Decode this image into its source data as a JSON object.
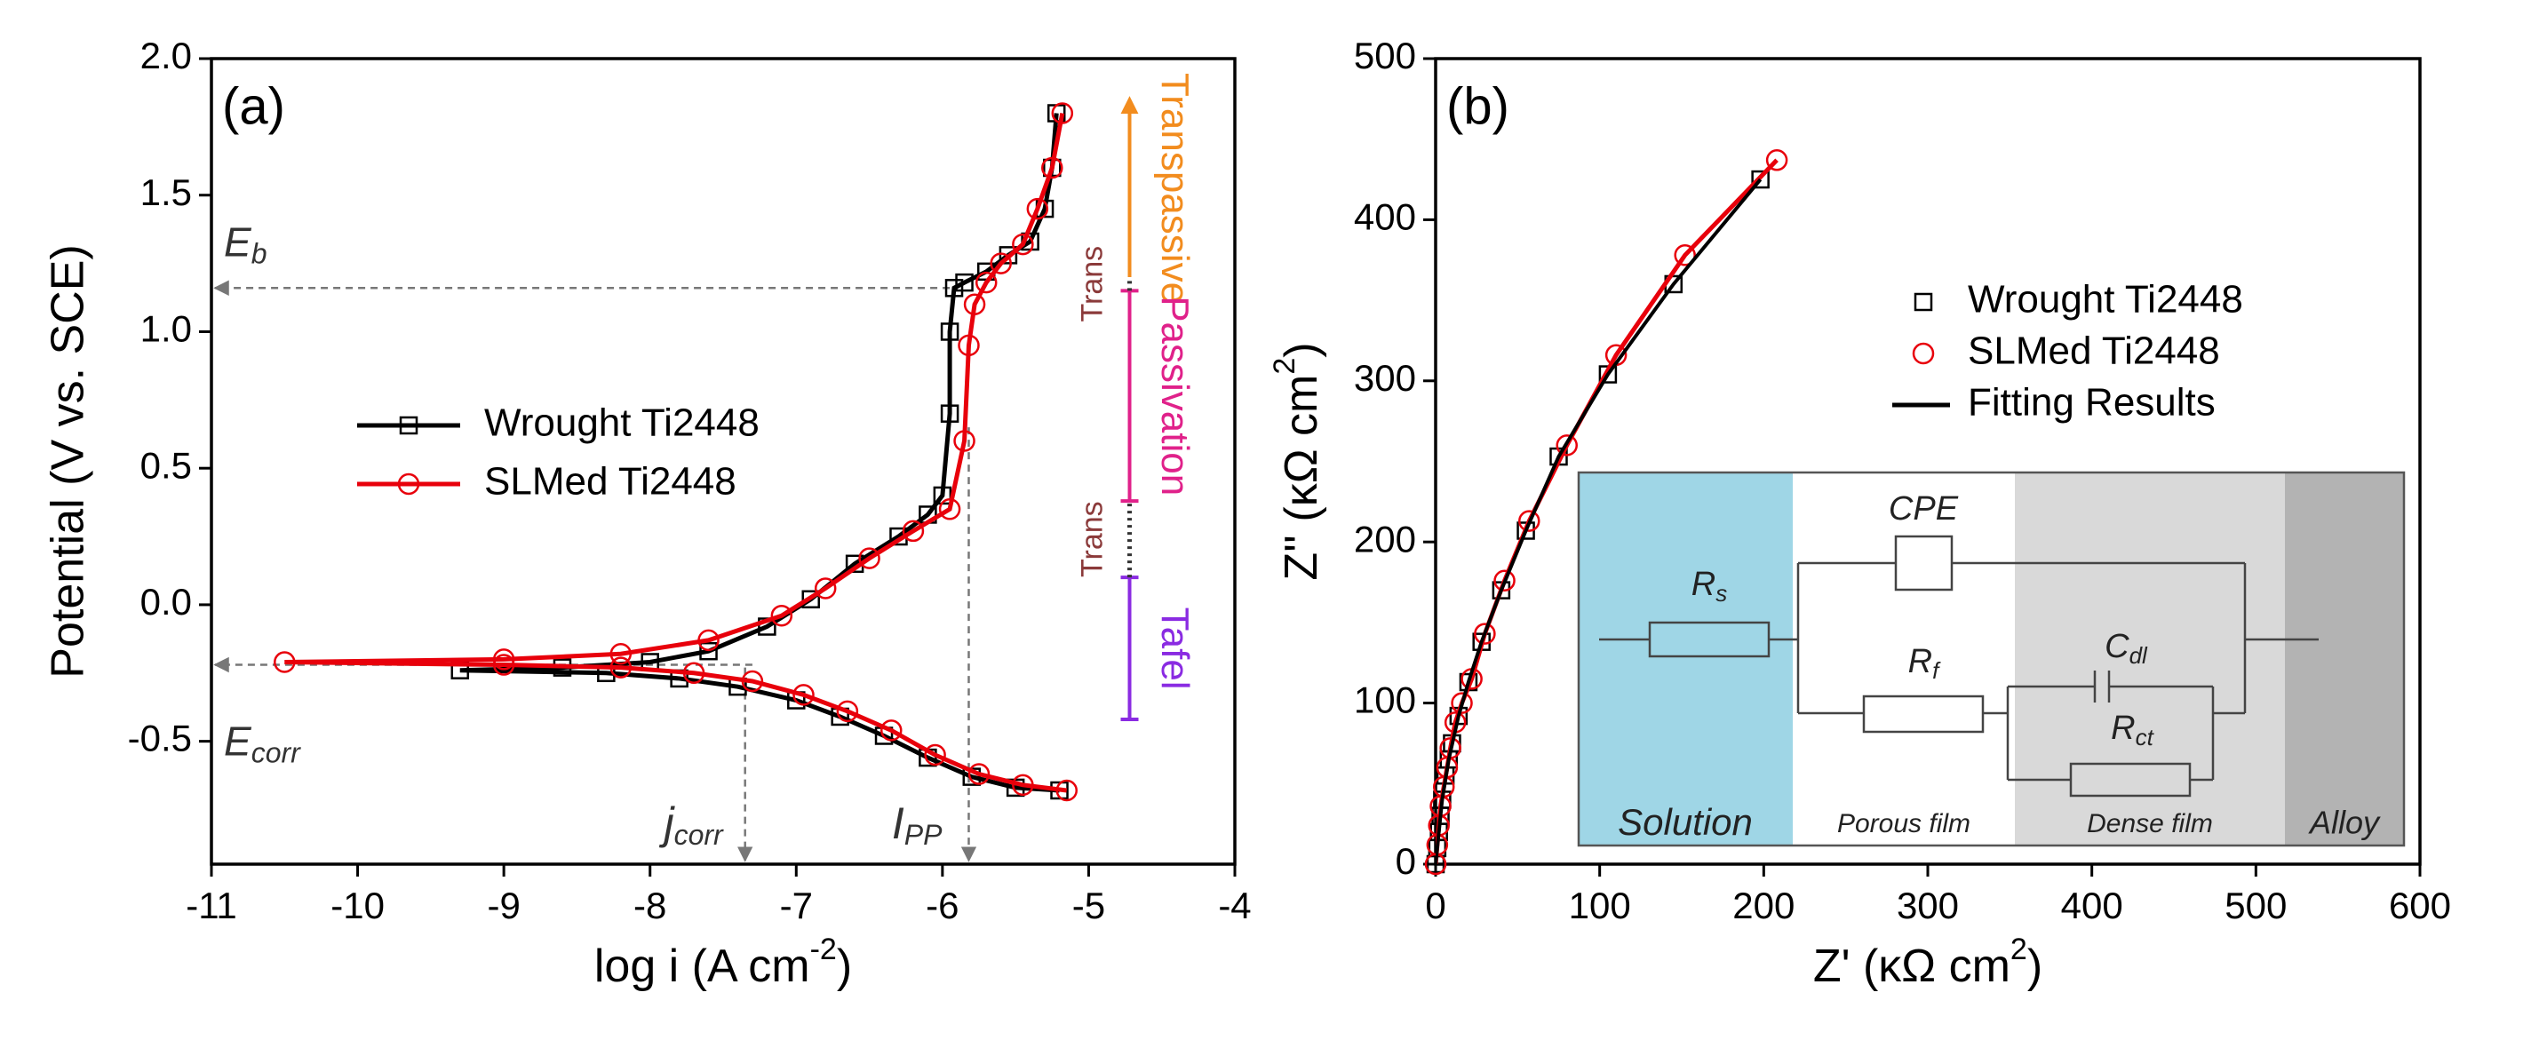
{
  "chart_data": [
    {
      "type": "line",
      "panel_label": "(a)",
      "xlabel": {
        "text": "log i (A cm",
        "sup": "-2",
        "tail": ")"
      },
      "ylabel": "Potential (V vs. SCE)",
      "xlim": [
        -11,
        -4
      ],
      "xticks": [
        -11,
        -10,
        -9,
        -8,
        -7,
        -6,
        -5,
        -4
      ],
      "ylim": [
        -0.95,
        2.0
      ],
      "yticks": [
        -0.5,
        {
          "value": 0,
          "label": "0.0"
        },
        0.5,
        {
          "value": 1,
          "label": "1.0"
        },
        1.5,
        {
          "value": 2,
          "label": "2.0"
        }
      ],
      "legend": "center-left",
      "series": [
        {
          "name": "Wrought Ti2448",
          "color": "#000000",
          "marker": "square",
          "line": true,
          "x": [
            -5.2,
            -5.5,
            -5.8,
            -6.1,
            -6.4,
            -6.7,
            -7.0,
            -7.4,
            -7.8,
            -8.3,
            -9.3,
            -8.6,
            -8.0,
            -7.6,
            -7.2,
            -6.9,
            -6.6,
            -6.3,
            -6.1,
            -6.0,
            -5.95,
            -5.95,
            -5.92,
            -5.85,
            -5.7,
            -5.55,
            -5.4,
            -5.3,
            -5.25,
            -5.22
          ],
          "values": [
            -0.68,
            -0.67,
            -0.63,
            -0.56,
            -0.48,
            -0.41,
            -0.35,
            -0.3,
            -0.27,
            -0.25,
            -0.24,
            -0.23,
            -0.21,
            -0.17,
            -0.08,
            0.02,
            0.15,
            0.25,
            0.33,
            0.4,
            0.7,
            1.0,
            1.16,
            1.18,
            1.22,
            1.28,
            1.33,
            1.45,
            1.6,
            1.8
          ]
        },
        {
          "name": "SLMed Ti2448",
          "color": "#e8000b",
          "marker": "circle",
          "line": true,
          "x": [
            -5.15,
            -5.45,
            -5.75,
            -6.05,
            -6.35,
            -6.65,
            -6.95,
            -7.3,
            -7.7,
            -8.2,
            -9.0,
            -10.5,
            -9.0,
            -8.2,
            -7.6,
            -7.1,
            -6.8,
            -6.5,
            -6.2,
            -5.95,
            -5.85,
            -5.82,
            -5.78,
            -5.7,
            -5.6,
            -5.45,
            -5.35,
            -5.25,
            -5.18
          ],
          "values": [
            -0.68,
            -0.66,
            -0.62,
            -0.55,
            -0.46,
            -0.39,
            -0.33,
            -0.28,
            -0.25,
            -0.23,
            -0.22,
            -0.21,
            -0.2,
            -0.18,
            -0.13,
            -0.04,
            0.06,
            0.17,
            0.27,
            0.35,
            0.6,
            0.95,
            1.1,
            1.18,
            1.25,
            1.32,
            1.45,
            1.6,
            1.8
          ]
        }
      ],
      "annotations": [
        {
          "text": "E",
          "sub": "b",
          "y": 1.16,
          "x": -5.95
        },
        {
          "text": "E",
          "sub": "corr",
          "y": -0.22,
          "x": -7.3
        },
        {
          "text": "j",
          "sub": "corr",
          "x": -7.35,
          "y": -0.23
        },
        {
          "text": "I",
          "sub": "PP",
          "x": -5.82,
          "y": 0.65
        }
      ],
      "region_x": -4.72,
      "regions": [
        {
          "label": "Transpassive",
          "color": "#f28c1e",
          "from": 1.2,
          "to": 1.85
        },
        {
          "label": "Passivation",
          "color": "#e0218a",
          "from": 0.38,
          "to": 1.15
        },
        {
          "label": "Tafel",
          "color": "#8a2be2",
          "from": -0.42,
          "to": 0.1
        },
        {
          "label": "Trans",
          "color": "#8b3a3a",
          "from": 1.15,
          "to": 1.2
        },
        {
          "label": "Trans",
          "color": "#8b3a3a",
          "from": 0.1,
          "to": 0.38
        }
      ]
    },
    {
      "type": "scatter",
      "panel_label": "(b)",
      "xlabel": {
        "text": "Z' (κΩ cm",
        "sup": "2",
        "tail": ")"
      },
      "ylabel": {
        "text": "Z'' (κΩ cm",
        "sup": "2",
        "tail": ")"
      },
      "xlim": [
        0,
        600
      ],
      "xticks": [
        0,
        100,
        200,
        300,
        400,
        500,
        600
      ],
      "ylim": [
        0,
        500
      ],
      "yticks": [
        0,
        100,
        200,
        300,
        400,
        500
      ],
      "legend": "upper-right",
      "series": [
        {
          "name": "Wrought Ti2448",
          "color": "#000000",
          "marker": "square",
          "line": false,
          "x": [
            0,
            1,
            2,
            3,
            4,
            6,
            8,
            10,
            14,
            20,
            28,
            40,
            55,
            75,
            105,
            145,
            198
          ],
          "values": [
            0,
            10,
            20,
            30,
            40,
            55,
            65,
            75,
            92,
            113,
            138,
            170,
            207,
            253,
            304,
            360,
            425
          ]
        },
        {
          "name": "SLMed Ti2448",
          "color": "#e8000b",
          "marker": "circle",
          "line": true,
          "x": [
            0,
            1,
            2,
            3,
            5,
            7,
            9,
            12,
            16,
            22,
            30,
            42,
            57,
            80,
            110,
            152,
            208
          ],
          "values": [
            0,
            12,
            24,
            36,
            48,
            60,
            72,
            88,
            100,
            115,
            143,
            176,
            213,
            260,
            316,
            378,
            437
          ]
        },
        {
          "name": "Fitting Results",
          "color": "#000000",
          "marker": "none",
          "line": true,
          "x": [
            0,
            2,
            4,
            8,
            14,
            20,
            28,
            40,
            55,
            75,
            105,
            145,
            198
          ],
          "values": [
            0,
            20,
            40,
            65,
            92,
            113,
            138,
            170,
            207,
            253,
            304,
            360,
            425
          ]
        }
      ],
      "inset": {
        "regions": [
          "Solution",
          "Porous film",
          "Dense film",
          "Alloy"
        ],
        "elements": [
          {
            "text": "R",
            "sub": "s"
          },
          {
            "text": "CPE"
          },
          {
            "text": "R",
            "sub": "f"
          },
          {
            "text": "C",
            "sub": "dl"
          },
          {
            "text": "R",
            "sub": "ct"
          }
        ]
      }
    }
  ]
}
